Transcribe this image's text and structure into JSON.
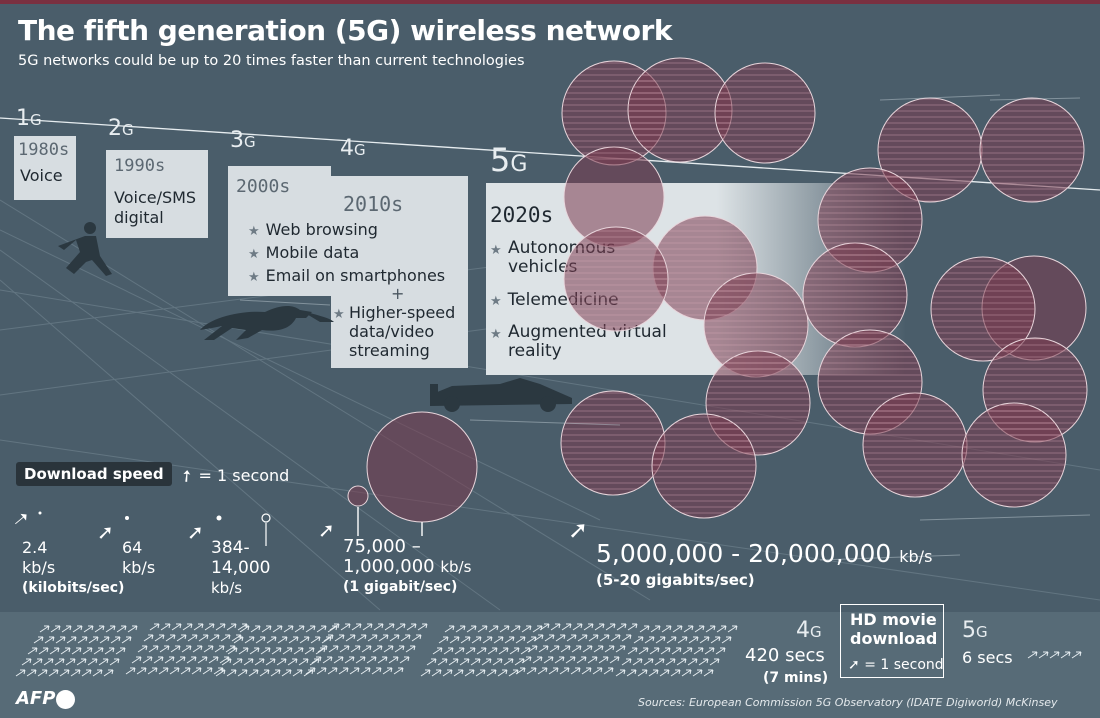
{
  "header": {
    "title": "The fifth generation (5G) wireless network",
    "subtitle": "5G networks could be up to 20 times faster than current technologies"
  },
  "generations": [
    {
      "gen_num": "1",
      "gen_suffix": "G",
      "decade": "1980s",
      "uses": [
        "Voice"
      ]
    },
    {
      "gen_num": "2",
      "gen_suffix": "G",
      "decade": "1990s",
      "uses": [
        "Voice/SMS",
        "digital"
      ]
    },
    {
      "gen_num": "3",
      "gen_suffix": "G",
      "decade": "2000s",
      "features": [
        "Web browsing",
        "Mobile data",
        "Email on smartphones"
      ],
      "plus": "+"
    },
    {
      "gen_num": "4",
      "gen_suffix": "G",
      "decade": "2010s",
      "features": [
        "Higher-speed data/video streaming"
      ]
    },
    {
      "gen_num": "5",
      "gen_suffix": "G",
      "decade": "2020s",
      "features": [
        "Autonomous vehicles",
        "Telemedicine",
        "Augmented virtual reality"
      ]
    }
  ],
  "download_speed": {
    "badge": "Download speed",
    "legend": "= 1 second",
    "speeds": [
      {
        "value": "2.4",
        "unit": "kb/s",
        "note": "(kilobits/sec)"
      },
      {
        "value": "64",
        "unit": "kb/s"
      },
      {
        "value": "384-",
        "value2": "14,000",
        "unit": "kb/s"
      },
      {
        "value": "75,000 –",
        "value2": "1,000,000",
        "unit": "kb/s",
        "note": "(1 gigabit/sec)"
      },
      {
        "value": "5,000,000 - 20,000,000",
        "unit": "kb/s",
        "note": "(5-20 gigabits/sec)"
      }
    ]
  },
  "hd_movie": {
    "title_1": "HD movie",
    "title_2": "download",
    "legend": "= 1 second",
    "g4": {
      "gen_num": "4",
      "gen_suffix": "G",
      "time": "420 secs",
      "note": "(7 mins)"
    },
    "g5": {
      "gen_num": "5",
      "gen_suffix": "G",
      "time": "6 secs"
    }
  },
  "footer": {
    "sources": "Sources: European Commission 5G Observatory (IDATE Digiworld) McKinsey",
    "logo": "AFP"
  },
  "colors": {
    "background": "#4a5d6a",
    "panel": "#d7dde1",
    "circle": "#7a3a4e",
    "accent": "#7a3040"
  },
  "icons": [
    "runner-icon",
    "cheetah-icon",
    "race-car-icon",
    "arrow-icon",
    "star-icon"
  ]
}
